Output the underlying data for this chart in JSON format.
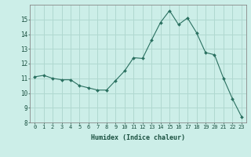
{
  "x": [
    0,
    1,
    2,
    3,
    4,
    5,
    6,
    7,
    8,
    9,
    10,
    11,
    12,
    13,
    14,
    15,
    16,
    17,
    18,
    19,
    20,
    21,
    22,
    23
  ],
  "y": [
    11.1,
    11.2,
    11.0,
    10.9,
    10.9,
    10.5,
    10.35,
    10.2,
    10.2,
    10.85,
    11.5,
    12.4,
    12.35,
    13.6,
    14.8,
    15.6,
    14.65,
    15.1,
    14.1,
    12.75,
    12.6,
    11.0,
    9.6,
    8.4
  ],
  "line_color": "#2a7060",
  "marker": "D",
  "marker_size": 2.0,
  "background_color": "#cceee8",
  "grid_color": "#b0d8d0",
  "xlabel": "Humidex (Indice chaleur)",
  "ylim": [
    8,
    16
  ],
  "xlim": [
    -0.5,
    23.5
  ],
  "yticks": [
    8,
    9,
    10,
    11,
    12,
    13,
    14,
    15
  ],
  "xticks": [
    0,
    1,
    2,
    3,
    4,
    5,
    6,
    7,
    8,
    9,
    10,
    11,
    12,
    13,
    14,
    15,
    16,
    17,
    18,
    19,
    20,
    21,
    22,
    23
  ],
  "label_color": "#1a5040",
  "tick_color": "#1a5040",
  "spine_color": "#888888",
  "tick_fontsize": 5.0,
  "xlabel_fontsize": 6.0
}
